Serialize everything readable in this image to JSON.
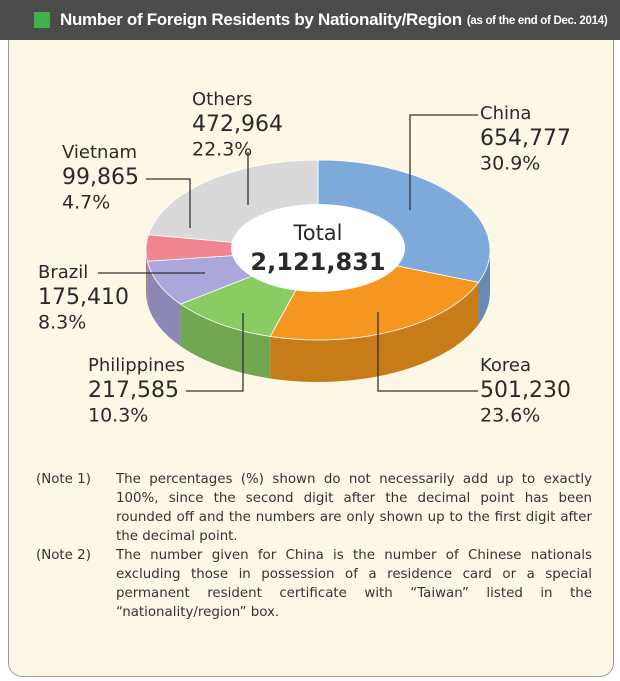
{
  "chart_data": {
    "type": "pie",
    "title": "Number of Foreign Residents by Nationality/Region",
    "subtitle": "(as of the end of Dec. 2014)",
    "categories": [
      "China",
      "Korea",
      "Philippines",
      "Brazil",
      "Vietnam",
      "Others"
    ],
    "values": [
      654777,
      501230,
      217585,
      175410,
      99865,
      472964
    ],
    "value_labels": [
      "654,777",
      "501,230",
      "217,585",
      "175,410",
      "99,865",
      "472,964"
    ],
    "percent_labels": [
      "30.9%",
      "23.6%",
      "10.3%",
      "8.3%",
      "4.7%",
      "22.3%"
    ],
    "colors": [
      "#7eaadb",
      "#f4961f",
      "#8bcb63",
      "#aaa7da",
      "#ef8690",
      "#d9d9d9"
    ],
    "donut": true,
    "three_d": true,
    "total_label": "Total",
    "total": "2,121,831",
    "notes": [
      {
        "label": "(Note 1)",
        "text": "The percentages (%) shown do not necessarily add up to exactly 100%, since the second digit after the decimal point has been rounded off and the numbers are only shown up to the first digit after the decimal point."
      },
      {
        "label": "(Note 2)",
        "text": "The number given for China is the number of Chinese nationals excluding those in possession of a residence card or a special permanent resident certificate with “Taiwan” listed in the “nationality/region” box."
      }
    ]
  }
}
